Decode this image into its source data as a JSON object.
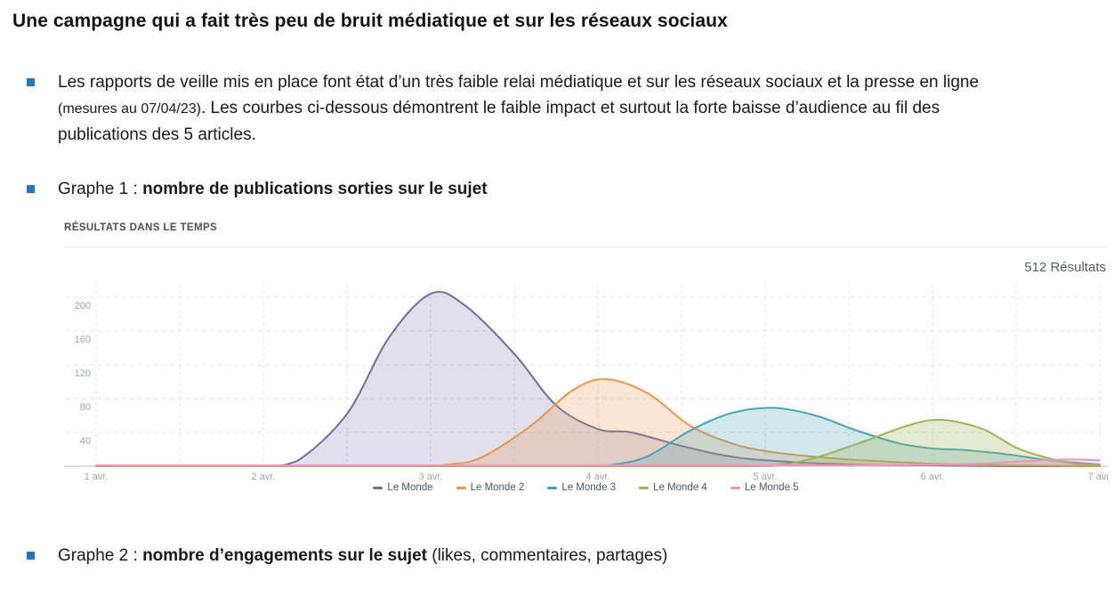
{
  "page": {
    "title": "Une campagne qui a fait très peu de bruit médiatique et sur les réseaux sociaux",
    "accent_color": "#1f78c1",
    "bullets": {
      "b1": {
        "part1": "Les rapports de veille mis en place font état d’un très faible relai médiatique et sur les réseaux sociaux et la presse en ligne ",
        "small": "(mesures au 07/04/23)",
        "part2": ". Les courbes ci-dessous démontrent le faible impact et surtout la forte baisse d’audience au fil des publications des 5 articles."
      },
      "b2": {
        "prefix": "Graphe 1 : ",
        "bold": "nombre de publications sorties sur le sujet",
        "suffix": ""
      },
      "b3": {
        "prefix": "Graphe 2 : ",
        "bold": "nombre d’engagements sur le sujet",
        "suffix": " (likes, commentaires, partages)"
      }
    }
  },
  "chart_data": {
    "type": "area",
    "title": "RÉSULTATS DANS LE TEMPS",
    "results_total": "512 Résultats",
    "xlabel": "",
    "ylabel": "",
    "x_ticks": [
      "1 avr.",
      "2 avr.",
      "3 avr.",
      "4 avr.",
      "5 avr.",
      "6 avr.",
      "7 avr."
    ],
    "x_minor_step": 0.5,
    "y_ticks": [
      40,
      80,
      120,
      160,
      200
    ],
    "xlim": [
      1,
      7
    ],
    "ylim": [
      0,
      215
    ],
    "grid": "dashed",
    "legend_position": "bottom",
    "axis_color": "#c7ccd1",
    "grid_color": "#dcdfe3",
    "tick_label_color": "#9ba3ab",
    "series": [
      {
        "name": "Le Monde",
        "color": "#716e9e",
        "fill": "rgba(113,110,158,0.22)",
        "x": [
          1,
          1.5,
          2,
          2.2,
          2.5,
          2.75,
          3,
          3.2,
          3.5,
          3.75,
          4,
          4.2,
          4.5,
          4.75,
          5,
          5.5,
          6,
          6.5,
          7
        ],
        "y": [
          0,
          0,
          0,
          6,
          62,
          152,
          204,
          191,
          133,
          72,
          44,
          40,
          24,
          13,
          7,
          2,
          1,
          0,
          0
        ]
      },
      {
        "name": "Le Monde 2",
        "color": "#e8984a",
        "fill": "rgba(233,152,74,0.24)",
        "x": [
          1,
          2,
          2.9,
          3.1,
          3.3,
          3.6,
          3.85,
          4.05,
          4.3,
          4.55,
          4.8,
          5,
          5.25,
          5.5,
          6,
          6.5,
          7
        ],
        "y": [
          0,
          0,
          0,
          2,
          10,
          48,
          90,
          103,
          86,
          48,
          27,
          18,
          12,
          8,
          3,
          1,
          0
        ]
      },
      {
        "name": "Le Monde 3",
        "color": "#4aa2b5",
        "fill": "rgba(74,162,181,0.26)",
        "x": [
          1,
          3,
          3.9,
          4.1,
          4.3,
          4.55,
          4.8,
          5.05,
          5.3,
          5.55,
          5.8,
          6,
          6.2,
          6.45,
          6.7,
          7
        ],
        "y": [
          0,
          0,
          0,
          2,
          12,
          42,
          63,
          69,
          60,
          42,
          27,
          21,
          19,
          14,
          7,
          2
        ]
      },
      {
        "name": "Le Monde 4",
        "color": "#9ab557",
        "fill": "rgba(154,181,87,0.28)",
        "x": [
          1,
          4,
          4.9,
          5.1,
          5.3,
          5.6,
          5.85,
          6.05,
          6.3,
          6.5,
          6.7,
          6.85,
          7
        ],
        "y": [
          0,
          0,
          0,
          2,
          10,
          30,
          48,
          55,
          44,
          22,
          9,
          3,
          1
        ]
      },
      {
        "name": "Le Monde 5",
        "color": "#f193bb",
        "fill": "rgba(241,147,187,0.22)",
        "x": [
          1,
          2,
          3,
          4,
          5,
          5.5,
          6,
          6.3,
          6.55,
          6.8,
          7
        ],
        "y": [
          1,
          1,
          1,
          1,
          1,
          1,
          2,
          3,
          6,
          8,
          7
        ]
      }
    ]
  }
}
